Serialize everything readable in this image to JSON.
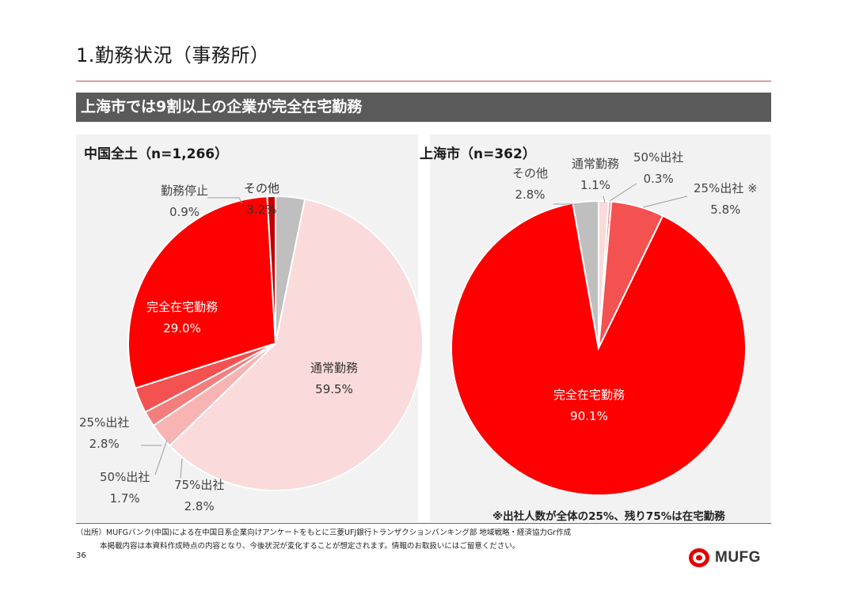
{
  "page": {
    "title": "1.勤務状況（事務所）",
    "banner": "上海市では9割以上の企業が完全在宅勤務",
    "note": "※出社人数が全体の25%、残り75%は在宅勤務",
    "source": "（出所）MUFGバンク(中国)による在中国日系企業向けアンケートをもとに三菱UFJ銀行トランザクションバンキング部 地域戦略・経済協力Gr作成",
    "disclaimer": "本掲載内容は本資料作成時点の内容となり、今後状況が変化することが想定されます。情報のお取扱いにはご留意ください。",
    "page_number": "36",
    "logo_text": "MUFG",
    "brand_color": "#e60000"
  },
  "chart_data": [
    {
      "type": "pie",
      "title": "中国全土（n=1,266）",
      "slices": [
        {
          "label": "その他",
          "value": 3.2,
          "display": "3.2%",
          "color": "#bfbfbf"
        },
        {
          "label": "通常勤務",
          "value": 59.5,
          "display": "59.5%",
          "color": "#fadada"
        },
        {
          "label": "75%出社",
          "value": 2.8,
          "display": "2.8%",
          "color": "#f8b3b3"
        },
        {
          "label": "50%出社",
          "value": 1.7,
          "display": "1.7%",
          "color": "#f47e7e"
        },
        {
          "label": "25%出社",
          "value": 2.8,
          "display": "2.8%",
          "color": "#f45151"
        },
        {
          "label": "完全在宅勤務",
          "value": 29.0,
          "display": "29.0%",
          "color": "#ff0000"
        },
        {
          "label": "勤務停止",
          "value": 0.9,
          "display": "0.9%",
          "color": "#c00000"
        }
      ]
    },
    {
      "type": "pie",
      "title": "上海市（n=362）",
      "slices": [
        {
          "label": "通常勤務",
          "value": 1.1,
          "display": "1.1%",
          "color": "#fadada"
        },
        {
          "label": "50%出社",
          "value": 0.3,
          "display": "0.3%",
          "color": "#f47e7e"
        },
        {
          "label": "25%出社 ※",
          "value": 5.8,
          "display": "5.8%",
          "color": "#f45151"
        },
        {
          "label": "完全在宅勤務",
          "value": 90.1,
          "display": "90.1%",
          "color": "#ff0000"
        },
        {
          "label": "その他",
          "value": 2.8,
          "display": "2.8%",
          "color": "#bfbfbf"
        }
      ]
    }
  ]
}
